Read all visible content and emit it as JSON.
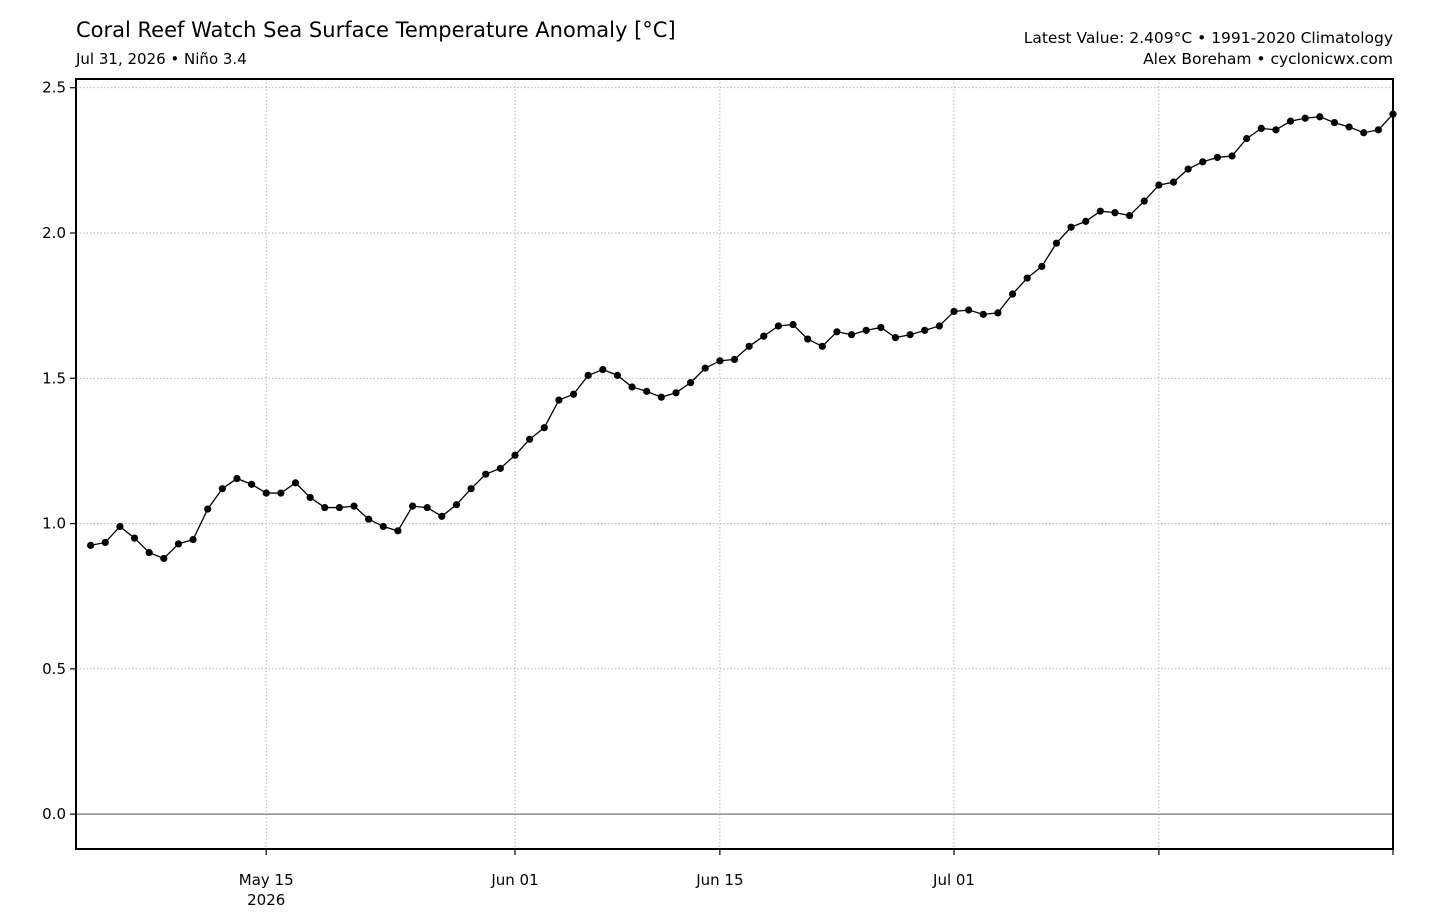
{
  "header": {
    "title": "Coral Reef Watch Sea Surface Temperature Anomaly [°C]",
    "subtitle": "Jul 31, 2026 • Niño 3.4",
    "latest": "Latest Value: 2.409°C • 1991-2020 Climatology",
    "credit": "Alex Boreham • cyclonicwx.com"
  },
  "chart_data": {
    "type": "line",
    "title": "Coral Reef Watch Sea Surface Temperature Anomaly [°C]",
    "subtitle": "Jul 31, 2026 • Niño 3.4",
    "x_start": "2026-05-03",
    "x_end": "2026-07-31",
    "xlim": [
      "2026-05-02",
      "2026-07-31"
    ],
    "ylim": [
      -0.12,
      2.53
    ],
    "yticks": [
      0.0,
      0.5,
      1.0,
      1.5,
      2.0,
      2.5
    ],
    "ytick_labels": [
      "0.0",
      "0.5",
      "1.0",
      "1.5",
      "2.0",
      "2.5"
    ],
    "xticks": [
      {
        "date": "2026-05-15",
        "label": "May 15",
        "sublabel": "2026"
      },
      {
        "date": "2026-06-01",
        "label": "Jun 01",
        "sublabel": ""
      },
      {
        "date": "2026-06-15",
        "label": "Jun 15",
        "sublabel": ""
      },
      {
        "date": "2026-07-01",
        "label": "Jul 01",
        "sublabel": ""
      },
      {
        "date": "2026-07-15",
        "label": "",
        "sublabel": ""
      },
      {
        "date": "2026-07-31",
        "label": "",
        "sublabel": ""
      }
    ],
    "grid": true,
    "zero_line": true,
    "series": [
      {
        "name": "",
        "color": "#000000",
        "values": [
          0.925,
          0.935,
          0.99,
          0.95,
          0.9,
          0.88,
          0.93,
          0.945,
          1.05,
          1.12,
          1.155,
          1.135,
          1.105,
          1.105,
          1.14,
          1.09,
          1.055,
          1.055,
          1.06,
          1.015,
          0.99,
          0.975,
          1.06,
          1.055,
          1.025,
          1.065,
          1.12,
          1.17,
          1.19,
          1.235,
          1.29,
          1.33,
          1.425,
          1.445,
          1.51,
          1.53,
          1.51,
          1.47,
          1.455,
          1.435,
          1.45,
          1.485,
          1.535,
          1.56,
          1.565,
          1.61,
          1.645,
          1.68,
          1.685,
          1.635,
          1.61,
          1.66,
          1.65,
          1.665,
          1.675,
          1.64,
          1.65,
          1.665,
          1.68,
          1.73,
          1.735,
          1.72,
          1.725,
          1.79,
          1.845,
          1.885,
          1.965,
          2.02,
          2.04,
          2.075,
          2.07,
          2.06,
          2.11,
          2.165,
          2.175,
          2.22,
          2.245,
          2.26,
          2.265,
          2.325,
          2.36,
          2.355,
          2.385,
          2.395,
          2.4,
          2.38,
          2.365,
          2.345,
          2.355,
          2.409
        ]
      }
    ]
  }
}
